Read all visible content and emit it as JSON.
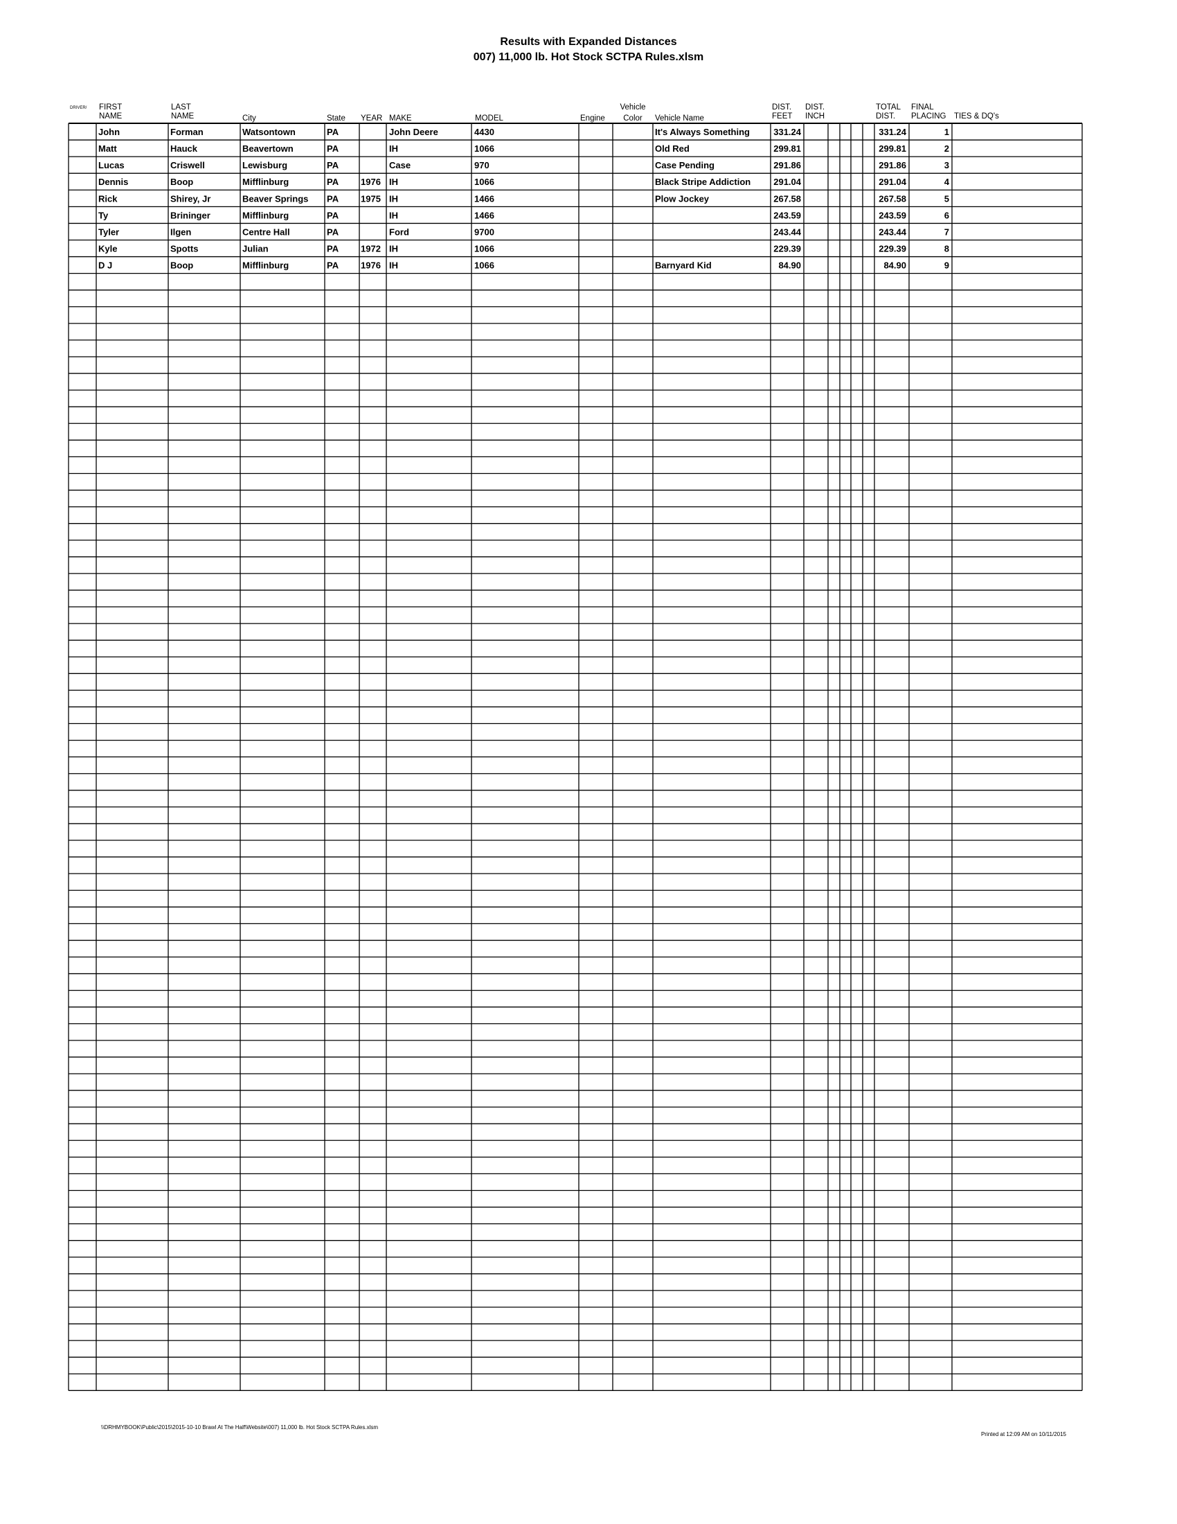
{
  "header": {
    "title": "Results with Expanded Distances",
    "subtitle": "007) 11,000 lb. Hot Stock SCTPA Rules.xlsm"
  },
  "table": {
    "columns": {
      "driver": "DRIVER/",
      "first_a": "FIRST",
      "first_b": "NAME",
      "last_a": "LAST",
      "last_b": "NAME",
      "city": "City",
      "state": "State",
      "year": "YEAR",
      "make": "MAKE",
      "model": "MODEL",
      "engine": "Engine",
      "color_a": "Vehicle",
      "color_b": "Color",
      "vehicle_name": "Vehicle Name",
      "feet_a": "DIST.",
      "feet_b": "FEET",
      "inch_a": "DIST.",
      "inch_b": "INCH",
      "total_a": "TOTAL",
      "total_b": "DIST.",
      "placing_a": "FINAL",
      "placing_b": "PLACING",
      "ties": "TIES & DQ's"
    },
    "rows": [
      [
        "John",
        "Forman",
        "Watsontown",
        "PA",
        "",
        "John Deere",
        "4430",
        "It's Always Something",
        "331.24",
        "331.24",
        "1"
      ],
      [
        "Matt",
        "Hauck",
        "Beavertown",
        "PA",
        "",
        "IH",
        "1066",
        "Old Red",
        "299.81",
        "299.81",
        "2"
      ],
      [
        "Lucas",
        "Criswell",
        "Lewisburg",
        "PA",
        "",
        "Case",
        "970",
        "Case Pending",
        "291.86",
        "291.86",
        "3"
      ],
      [
        "Dennis",
        "Boop",
        "Mifflinburg",
        "PA",
        "1976",
        "IH",
        "1066",
        "Black Stripe Addiction",
        "291.04",
        "291.04",
        "4"
      ],
      [
        "Rick",
        "Shirey, Jr",
        "Beaver Springs",
        "PA",
        "1975",
        "IH",
        "1466",
        "Plow Jockey",
        "267.58",
        "267.58",
        "5"
      ],
      [
        "Ty",
        "Brininger",
        "Mifflinburg",
        "PA",
        "",
        "IH",
        "1466",
        "",
        "243.59",
        "243.59",
        "6"
      ],
      [
        "Tyler",
        "Ilgen",
        "Centre Hall",
        "PA",
        "",
        "Ford",
        "9700",
        "",
        "243.44",
        "243.44",
        "7"
      ],
      [
        "Kyle",
        "Spotts",
        "Julian",
        "PA",
        "1972",
        "IH",
        "1066",
        "",
        "229.39",
        "229.39",
        "8"
      ],
      [
        "D J",
        "Boop",
        "Mifflinburg",
        "PA",
        "1976",
        "IH",
        "1066",
        "Barnyard Kid",
        "84.90",
        "84.90",
        "9"
      ]
    ]
  },
  "footer": {
    "path": "\\\\DRHMYBOOK\\Public\\2015\\2015-10-10 Brawl At The Half\\Website\\007) 11,000 lb. Hot Stock SCTPA Rules.xlsm",
    "printed": "Printed at 12:09 AM on 10/11/2015"
  }
}
